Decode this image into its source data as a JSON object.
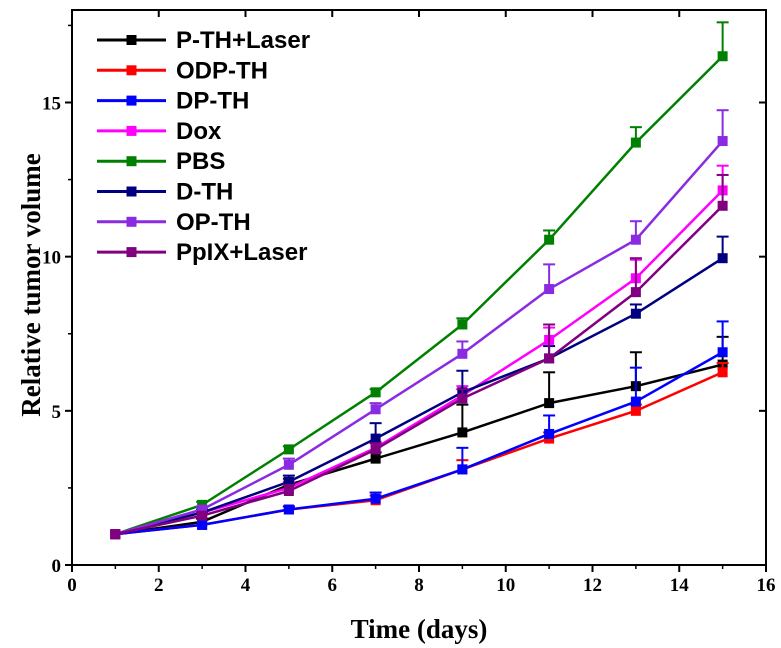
{
  "chart_data": {
    "type": "line",
    "title": "",
    "xlabel": "Time (days)",
    "ylabel": "Relative tumor volume",
    "xlim": [
      0,
      16
    ],
    "ylim": [
      0,
      18
    ],
    "xticks": [
      0,
      2,
      4,
      6,
      8,
      10,
      12,
      14,
      16
    ],
    "yticks": [
      0,
      5,
      10,
      15
    ],
    "grid": false,
    "legend_position": "top-left",
    "x": [
      1,
      3,
      5,
      7,
      9,
      11,
      13,
      15
    ],
    "series": [
      {
        "name": "P-TH+Laser",
        "color": "#000000",
        "values": [
          1.0,
          1.4,
          2.6,
          3.45,
          4.3,
          5.25,
          5.8,
          6.5
        ],
        "errors": [
          0.05,
          0.1,
          0.2,
          0.2,
          0.9,
          1.0,
          1.1,
          0.9
        ]
      },
      {
        "name": "ODP-TH",
        "color": "#ff0000",
        "values": [
          1.0,
          1.3,
          1.8,
          2.1,
          3.1,
          4.1,
          5.0,
          6.25
        ],
        "errors": [
          0.05,
          0.05,
          0.1,
          0.15,
          0.3,
          0.2,
          0.2,
          0.3
        ]
      },
      {
        "name": "DP-TH",
        "color": "#0000ff",
        "values": [
          1.0,
          1.3,
          1.8,
          2.15,
          3.1,
          4.25,
          5.3,
          6.9
        ],
        "errors": [
          0.05,
          0.05,
          0.1,
          0.2,
          0.7,
          0.6,
          1.1,
          1.0
        ]
      },
      {
        "name": "Dox",
        "color": "#ff00ff",
        "values": [
          1.0,
          1.7,
          2.5,
          3.8,
          5.5,
          7.3,
          9.3,
          12.15
        ],
        "errors": [
          0.05,
          0.1,
          0.2,
          0.2,
          0.3,
          0.4,
          0.6,
          0.8
        ]
      },
      {
        "name": "PBS",
        "color": "#008000",
        "values": [
          1.0,
          1.95,
          3.75,
          5.6,
          7.8,
          10.55,
          13.7,
          16.5
        ],
        "errors": [
          0.05,
          0.1,
          0.1,
          0.1,
          0.2,
          0.3,
          0.5,
          1.1
        ]
      },
      {
        "name": "D-TH",
        "color": "#000080",
        "values": [
          1.0,
          1.7,
          2.7,
          4.1,
          5.6,
          6.7,
          8.15,
          9.95
        ],
        "errors": [
          0.05,
          0.1,
          0.2,
          0.5,
          0.7,
          0.4,
          0.3,
          0.7
        ]
      },
      {
        "name": "OP-TH",
        "color": "#8a2be2",
        "values": [
          1.0,
          1.8,
          3.25,
          5.05,
          6.85,
          8.95,
          10.55,
          13.75
        ],
        "errors": [
          0.05,
          0.1,
          0.2,
          0.2,
          0.4,
          0.8,
          0.6,
          1.0
        ]
      },
      {
        "name": "PpIX+Laser",
        "color": "#800080",
        "values": [
          1.0,
          1.6,
          2.4,
          3.75,
          5.4,
          6.7,
          8.85,
          11.65
        ],
        "errors": [
          0.05,
          0.1,
          0.2,
          0.2,
          0.3,
          1.1,
          1.1,
          1.0
        ]
      }
    ]
  }
}
